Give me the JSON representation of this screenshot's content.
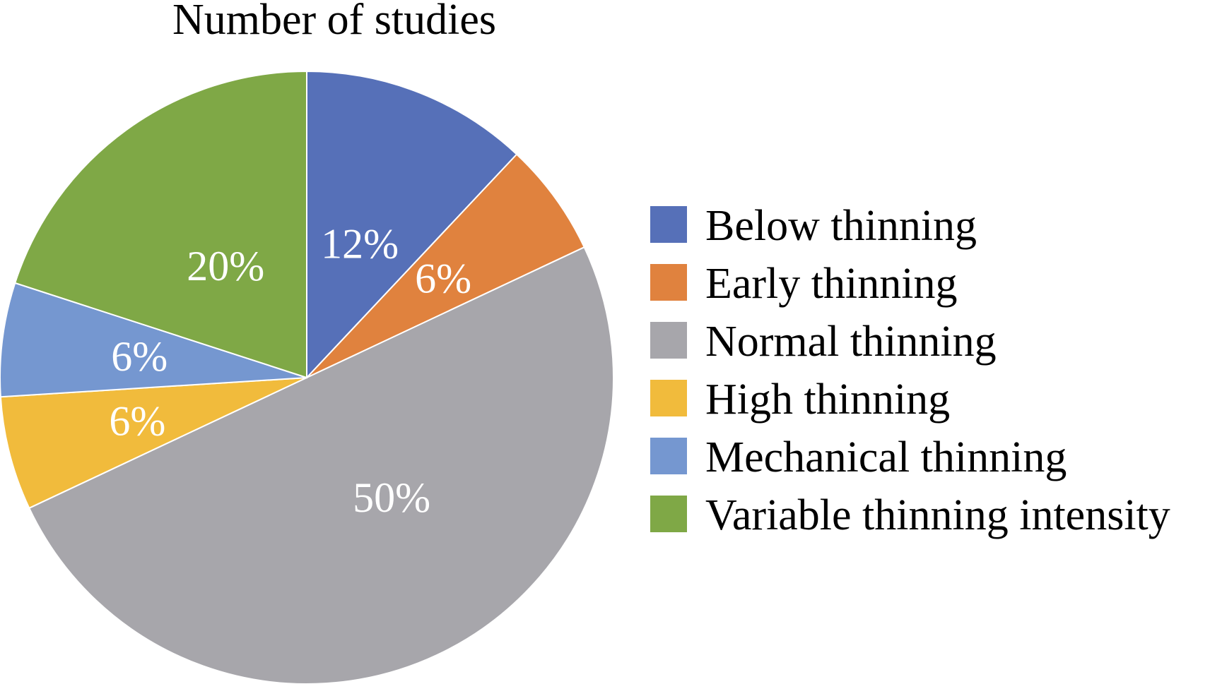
{
  "chart_data": {
    "type": "pie",
    "title": "Number of studies",
    "categories": [
      "Below thinning",
      "Early thinning",
      "Normal thinning",
      "High thinning",
      "Mechanical thinning",
      "Variable thinning intensity"
    ],
    "values": [
      12,
      6,
      50,
      6,
      6,
      20
    ],
    "labels": [
      "12%",
      "6%",
      "50%",
      "6%",
      "6%",
      "20%"
    ],
    "colors": [
      "#5670b8",
      "#e0823e",
      "#a7a6ab",
      "#f1bb3c",
      "#7597d0",
      "#7fa846"
    ],
    "start_angle_deg": 0,
    "direction": "clockwise",
    "legend_position": "right"
  }
}
